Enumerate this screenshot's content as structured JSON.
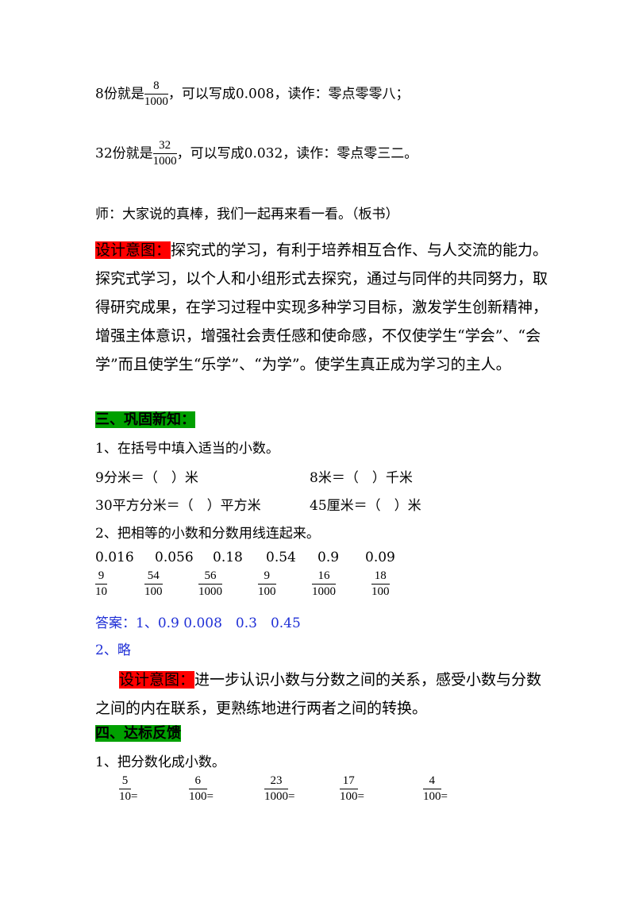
{
  "intro_lines": [
    {
      "prefix": "8份就是",
      "num": "8",
      "den": "1000",
      "suffix": "，可以写成0.008，读作：零点零零八；"
    },
    {
      "prefix": "32份就是",
      "num": "32",
      "den": "1000",
      "suffix": "，可以写成0.032，读作：零点零三二。"
    }
  ],
  "teacher_line": "师：大家说的真棒，我们一起再来看一看。（板书）",
  "design1": {
    "tag": "设计意图：",
    "text": "探究式的学习，有利于培养相互合作、与人交流的能力。探究式学习，以个人和小组形式去探究，通过与同伴的共同努力，取得研究成果，在学习过程中实现多种学习目标，激发学生创新精神，增强主体意识，增强社会责任感和使命感，不仅使学生“学会”、“会学”而且使学生“乐学”、“为学”。使学生真正成为学习的主人。"
  },
  "section3": {
    "heading": "三、巩固新知：",
    "q1": "1、在括号中填入适当的小数。",
    "q1_items": [
      "9分米＝（　）米",
      "8米＝（　）千米",
      "30平方分米＝（　）平方米",
      "45厘米＝（　）米"
    ],
    "q2": "2、把相等的小数和分数用线连起来。",
    "decimals": [
      "0.016",
      "0.056",
      "0.18",
      "0.54",
      "0.9",
      "0.09"
    ],
    "fractions": [
      {
        "num": "9",
        "den": "10"
      },
      {
        "num": "54",
        "den": "100"
      },
      {
        "num": "56",
        "den": "1000"
      },
      {
        "num": "9",
        "den": "100"
      },
      {
        "num": "16",
        "den": "1000"
      },
      {
        "num": "18",
        "den": "100"
      }
    ],
    "answer1": "答案：1、0.9 0.008　0.3　0.45",
    "answer2": "2、略"
  },
  "design2": {
    "tag": "设计意图：",
    "text": "进一步认识小数与分数之间的关系，感受小数与分数之间的内在联系，更熟练地进行两者之间的转换。"
  },
  "section4": {
    "heading": "四、达标反馈",
    "q1": "1、把分数化成小数。",
    "fractions": [
      {
        "num": "5",
        "den": "10"
      },
      {
        "num": "6",
        "den": "100"
      },
      {
        "num": "23",
        "den": "1000"
      },
      {
        "num": "17",
        "den": "100"
      },
      {
        "num": "4",
        "den": "100"
      }
    ],
    "equals": "="
  },
  "colors": {
    "red_tag": "#ff0000",
    "green_tag": "#00a000",
    "answer_blue": "#1f2fd6"
  }
}
